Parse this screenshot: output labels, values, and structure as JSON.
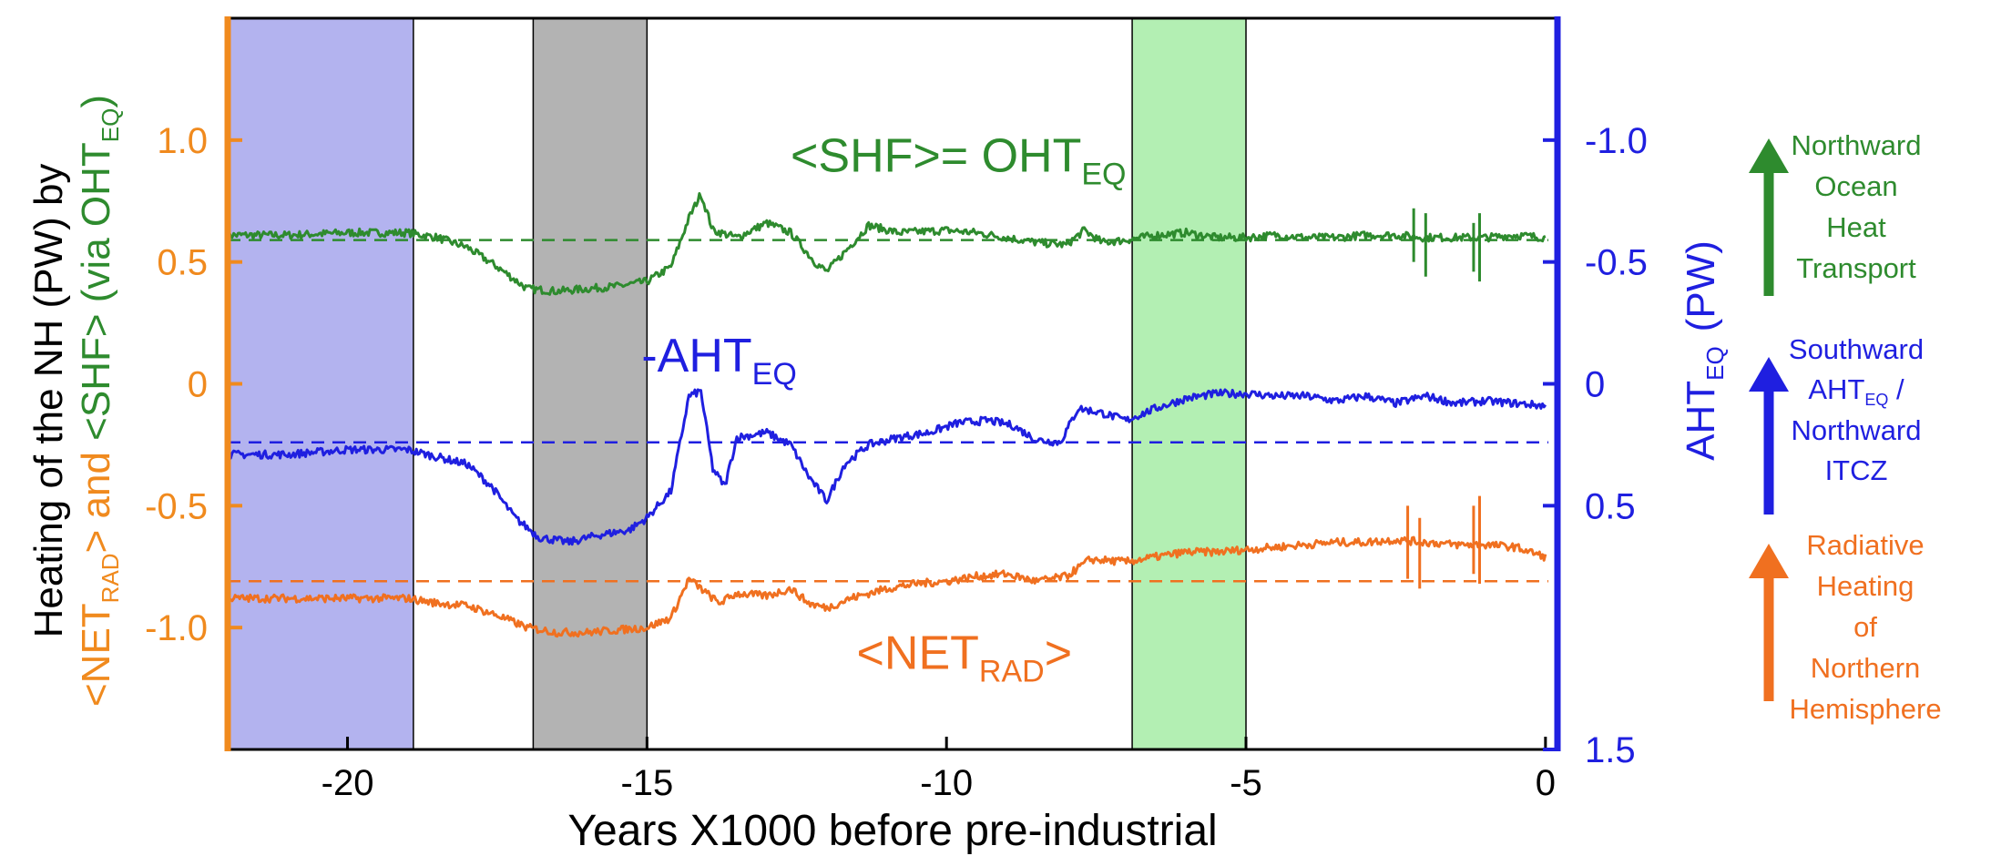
{
  "chart_data": {
    "type": "line",
    "xlabel": "Years X1000 before pre-industrial",
    "xlim": [
      -22,
      0.2
    ],
    "xticks": [
      -20,
      -15,
      -10,
      -5,
      0
    ],
    "xtick_labels": [
      "-20",
      "-15",
      "-10",
      "-5",
      "0"
    ],
    "left_axis": {
      "ylim": [
        -1.5,
        1.5
      ],
      "ticks": [
        1.0,
        0.5,
        0,
        -0.5,
        -1.0
      ],
      "tick_labels": [
        "1.0",
        "0.5",
        "0",
        "-0.5",
        "-1.0"
      ],
      "label": {
        "line1": "Heating of the NH (PW) by",
        "line2_a": "<NET",
        "line2_a_sub": "RAD",
        "line2_b": "> and ",
        "line2_c": "<SHF> (via OHT",
        "line2_c_sub": "EQ",
        "line2_d": ")"
      }
    },
    "right_axis": {
      "ylim": [
        1.5,
        -1.5
      ],
      "ticks": [
        -1.0,
        -0.5,
        0,
        0.5,
        1.5
      ],
      "tick_labels": [
        "-1.0",
        "-0.5",
        "0",
        "0.5",
        "1.5"
      ],
      "label": {
        "main": "AHT",
        "sub": "EQ",
        "unit": "(PW)"
      }
    },
    "shaded_periods": [
      {
        "x0": -22,
        "x1": -18.9,
        "color": "#b3b3ef"
      },
      {
        "x0": -16.9,
        "x1": -15.0,
        "color": "#b3b3b3"
      },
      {
        "x0": -6.9,
        "x1": -5.0,
        "color": "#b3efb3"
      }
    ],
    "series": [
      {
        "key": "shf",
        "color": "#2e8b2e",
        "reference_y": 0.59,
        "label": {
          "text": "<SHF>= OHT",
          "sub": "EQ",
          "x": -7,
          "y": 0.87
        },
        "points": [
          [
            -22,
            0.61
          ],
          [
            -21,
            0.61
          ],
          [
            -20,
            0.62
          ],
          [
            -19,
            0.62
          ],
          [
            -18.5,
            0.6
          ],
          [
            -18,
            0.56
          ],
          [
            -17.5,
            0.48
          ],
          [
            -17,
            0.39
          ],
          [
            -16.5,
            0.38
          ],
          [
            -16,
            0.39
          ],
          [
            -15.5,
            0.4
          ],
          [
            -15,
            0.42
          ],
          [
            -14.6,
            0.48
          ],
          [
            -14.3,
            0.68
          ],
          [
            -14.1,
            0.78
          ],
          [
            -13.9,
            0.63
          ],
          [
            -13.5,
            0.6
          ],
          [
            -13,
            0.66
          ],
          [
            -12.6,
            0.62
          ],
          [
            -12.2,
            0.5
          ],
          [
            -12,
            0.46
          ],
          [
            -11.7,
            0.54
          ],
          [
            -11.3,
            0.65
          ],
          [
            -10.8,
            0.62
          ],
          [
            -10,
            0.63
          ],
          [
            -9.5,
            0.62
          ],
          [
            -9,
            0.6
          ],
          [
            -8.5,
            0.58
          ],
          [
            -8,
            0.57
          ],
          [
            -7.7,
            0.63
          ],
          [
            -7.4,
            0.58
          ],
          [
            -7,
            0.59
          ],
          [
            -6.5,
            0.61
          ],
          [
            -6,
            0.62
          ],
          [
            -5.5,
            0.6
          ],
          [
            -5,
            0.6
          ],
          [
            -4.5,
            0.61
          ],
          [
            -4,
            0.6
          ],
          [
            -3.5,
            0.6
          ],
          [
            -3,
            0.61
          ],
          [
            -2.5,
            0.61
          ],
          [
            -2,
            0.6
          ],
          [
            -1.5,
            0.6
          ],
          [
            -1,
            0.6
          ],
          [
            -0.5,
            0.61
          ],
          [
            0,
            0.6
          ]
        ]
      },
      {
        "key": "aht",
        "color": "#1f1fe0",
        "reference_y": -0.24,
        "label": {
          "text": "-AHT",
          "sub": "EQ",
          "x": -12.5,
          "y": 0.05
        },
        "points": [
          [
            -22,
            -0.29
          ],
          [
            -21,
            -0.29
          ],
          [
            -20,
            -0.27
          ],
          [
            -19,
            -0.27
          ],
          [
            -18.5,
            -0.3
          ],
          [
            -18,
            -0.33
          ],
          [
            -17.6,
            -0.42
          ],
          [
            -17.2,
            -0.55
          ],
          [
            -16.8,
            -0.63
          ],
          [
            -16.3,
            -0.65
          ],
          [
            -15.8,
            -0.62
          ],
          [
            -15.3,
            -0.6
          ],
          [
            -15,
            -0.55
          ],
          [
            -14.6,
            -0.44
          ],
          [
            -14.3,
            -0.05
          ],
          [
            -14.1,
            -0.03
          ],
          [
            -13.9,
            -0.35
          ],
          [
            -13.7,
            -0.42
          ],
          [
            -13.5,
            -0.22
          ],
          [
            -13,
            -0.2
          ],
          [
            -12.6,
            -0.25
          ],
          [
            -12.3,
            -0.38
          ],
          [
            -12,
            -0.48
          ],
          [
            -11.7,
            -0.33
          ],
          [
            -11.3,
            -0.25
          ],
          [
            -10.8,
            -0.22
          ],
          [
            -10.3,
            -0.2
          ],
          [
            -9.8,
            -0.16
          ],
          [
            -9.3,
            -0.15
          ],
          [
            -8.9,
            -0.17
          ],
          [
            -8.5,
            -0.23
          ],
          [
            -8.1,
            -0.24
          ],
          [
            -7.8,
            -0.1
          ],
          [
            -7.4,
            -0.12
          ],
          [
            -7,
            -0.15
          ],
          [
            -6.5,
            -0.1
          ],
          [
            -6,
            -0.06
          ],
          [
            -5.5,
            -0.04
          ],
          [
            -5,
            -0.04
          ],
          [
            -4.5,
            -0.05
          ],
          [
            -4,
            -0.05
          ],
          [
            -3.5,
            -0.07
          ],
          [
            -3,
            -0.05
          ],
          [
            -2.5,
            -0.08
          ],
          [
            -2,
            -0.05
          ],
          [
            -1.5,
            -0.08
          ],
          [
            -1,
            -0.07
          ],
          [
            -0.5,
            -0.08
          ],
          [
            0,
            -0.09
          ]
        ]
      },
      {
        "key": "netrad",
        "color": "#f07020",
        "reference_y": -0.81,
        "label": {
          "text": "<NET",
          "sub": "RAD",
          "after": ">",
          "x": -11.5,
          "y": -1.17
        },
        "points": [
          [
            -22,
            -0.88
          ],
          [
            -21,
            -0.88
          ],
          [
            -20,
            -0.88
          ],
          [
            -19,
            -0.88
          ],
          [
            -18.5,
            -0.9
          ],
          [
            -18,
            -0.91
          ],
          [
            -17.5,
            -0.95
          ],
          [
            -17,
            -1.0
          ],
          [
            -16.5,
            -1.02
          ],
          [
            -16,
            -1.02
          ],
          [
            -15.5,
            -1.01
          ],
          [
            -15,
            -1.0
          ],
          [
            -14.6,
            -0.96
          ],
          [
            -14.3,
            -0.8
          ],
          [
            -14.1,
            -0.84
          ],
          [
            -13.8,
            -0.9
          ],
          [
            -13.5,
            -0.86
          ],
          [
            -13,
            -0.87
          ],
          [
            -12.6,
            -0.84
          ],
          [
            -12.3,
            -0.9
          ],
          [
            -12,
            -0.92
          ],
          [
            -11.6,
            -0.88
          ],
          [
            -11,
            -0.84
          ],
          [
            -10.5,
            -0.82
          ],
          [
            -10,
            -0.81
          ],
          [
            -9.5,
            -0.79
          ],
          [
            -9,
            -0.78
          ],
          [
            -8.5,
            -0.81
          ],
          [
            -8,
            -0.79
          ],
          [
            -7.6,
            -0.72
          ],
          [
            -7,
            -0.73
          ],
          [
            -6.5,
            -0.71
          ],
          [
            -6,
            -0.69
          ],
          [
            -5.5,
            -0.69
          ],
          [
            -5,
            -0.68
          ],
          [
            -4.5,
            -0.67
          ],
          [
            -4,
            -0.66
          ],
          [
            -3.5,
            -0.65
          ],
          [
            -3,
            -0.65
          ],
          [
            -2.5,
            -0.64
          ],
          [
            -2,
            -0.65
          ],
          [
            -1.5,
            -0.66
          ],
          [
            -1,
            -0.66
          ],
          [
            -0.5,
            -0.67
          ],
          [
            0,
            -0.71
          ]
        ]
      }
    ],
    "spikes": [
      {
        "series": "shf",
        "x": -2.2,
        "y0": 0.5,
        "y1": 0.72
      },
      {
        "series": "shf",
        "x": -2.0,
        "y0": 0.44,
        "y1": 0.7
      },
      {
        "series": "shf",
        "x": -1.2,
        "y0": 0.46,
        "y1": 0.66
      },
      {
        "series": "shf",
        "x": -1.1,
        "y0": 0.42,
        "y1": 0.7
      },
      {
        "series": "netrad",
        "x": -2.3,
        "y0": -0.8,
        "y1": -0.5
      },
      {
        "series": "netrad",
        "x": -2.1,
        "y0": -0.84,
        "y1": -0.55
      },
      {
        "series": "netrad",
        "x": -1.2,
        "y0": -0.78,
        "y1": -0.5
      },
      {
        "series": "netrad",
        "x": -1.1,
        "y0": -0.82,
        "y1": -0.46
      }
    ]
  },
  "legend_arrows": [
    {
      "color": "#2e8b2e",
      "lines": [
        "Northward",
        "Ocean",
        "Heat",
        "Transport"
      ]
    },
    {
      "color": "#1f1fe0",
      "line1": "Southward",
      "line2": "AHT",
      "line2_sub": "EQ",
      "line2_after": " /",
      "line3": "Northward",
      "line4": "ITCZ"
    },
    {
      "color": "#f07020",
      "lines": [
        "Radiative",
        "Heating",
        "of",
        "Northern",
        "Hemisphere"
      ]
    }
  ]
}
